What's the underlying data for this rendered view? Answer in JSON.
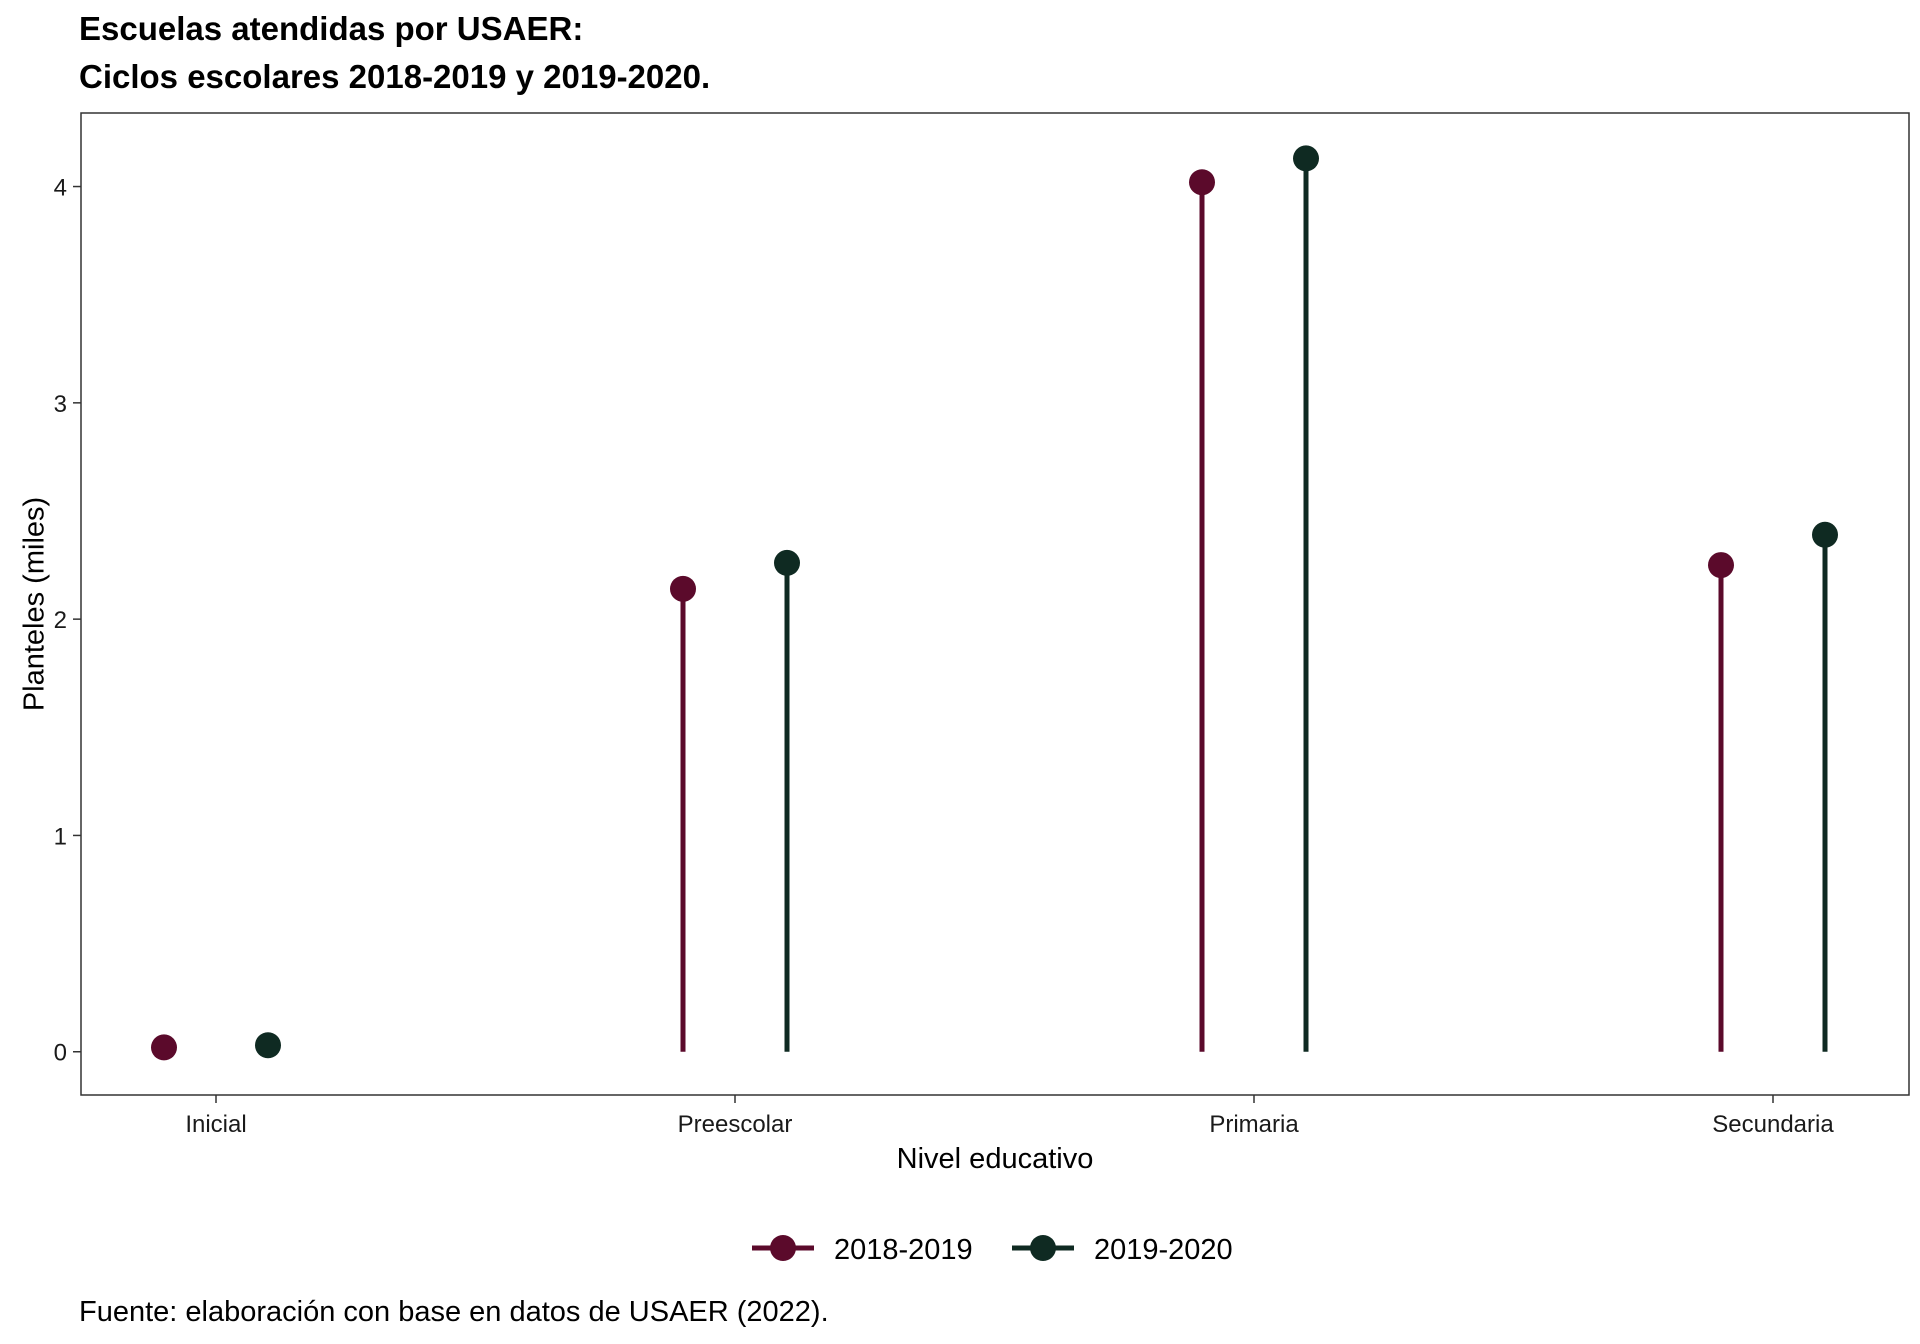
{
  "title_line1": "Escuelas atendidas por USAER:",
  "title_line2": "Ciclos escolares 2018-2019 y 2019-2020.",
  "caption": "Fuente: elaboración con base en datos de USAER (2022).",
  "chart_data": {
    "type": "lollipop",
    "title": "Escuelas atendidas por USAER: Ciclos escolares 2018-2019 y 2019-2020.",
    "xlabel": "Nivel educativo",
    "ylabel": "Planteles (miles)",
    "categories": [
      "Inicial",
      "Preescolar",
      "Primaria",
      "Secundaria"
    ],
    "series": [
      {
        "name": "2018-2019",
        "color": "#5b0a2b",
        "values": [
          0.02,
          2.14,
          4.02,
          2.25
        ]
      },
      {
        "name": "2019-2020",
        "color": "#0f2a22",
        "values": [
          0.03,
          2.26,
          4.13,
          2.39
        ]
      }
    ],
    "yticks": [
      0,
      1,
      2,
      3,
      4
    ],
    "ylim": [
      -0.2,
      4.34
    ],
    "grid": false,
    "legend": "bottom"
  }
}
